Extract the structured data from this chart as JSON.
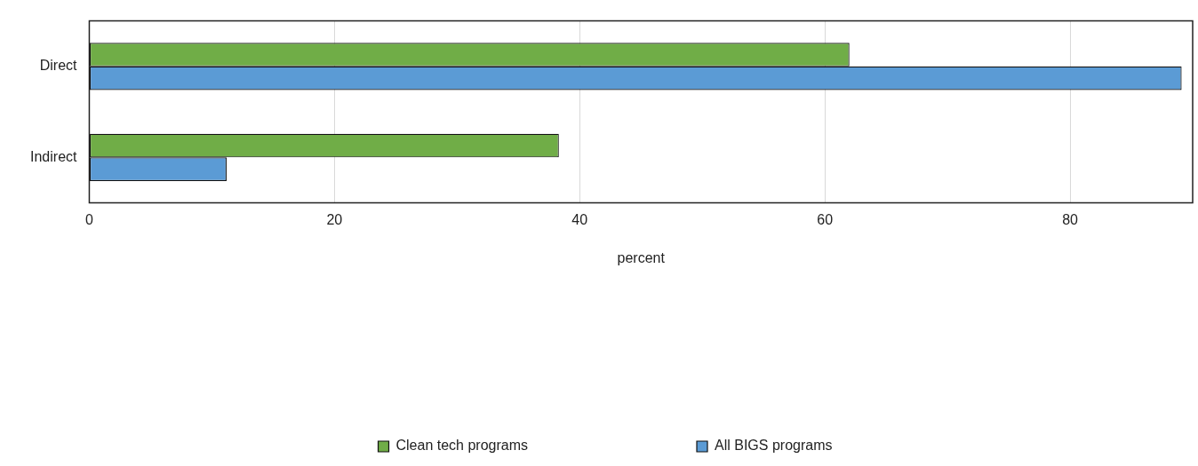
{
  "chart_data": {
    "type": "bar",
    "orientation": "horizontal",
    "xlabel": "percent",
    "categories": [
      "Direct",
      "Indirect"
    ],
    "series": [
      {
        "name": "Clean tech programs",
        "color": "#70ad47",
        "values": [
          62.0,
          38.3
        ]
      },
      {
        "name": "All BIGS programs",
        "color": "#5b9bd5",
        "values": [
          89.1,
          11.2
        ]
      }
    ],
    "xlim": [
      0,
      90
    ],
    "xticks": [
      0,
      20,
      40,
      60,
      80
    ],
    "grid": "x",
    "legend": "bottom"
  }
}
